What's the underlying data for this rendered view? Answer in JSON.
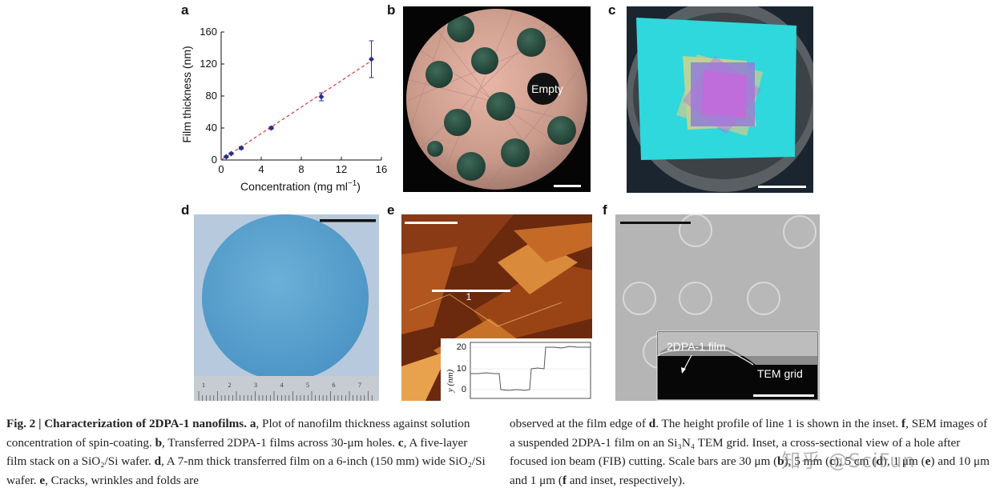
{
  "panels": {
    "a": "a",
    "b": "b",
    "c": "c",
    "d": "d",
    "e": "e",
    "f": "f"
  },
  "chart_data": {
    "type": "scatter",
    "xlabel": "Concentration (mg ml",
    "xlabel_sup": "−1",
    "xlabel_close": ")",
    "ylabel": "Film thickness (nm)",
    "xlim": [
      0,
      16
    ],
    "ylim": [
      0,
      160
    ],
    "xticks": [
      0,
      4,
      8,
      12,
      16
    ],
    "yticks": [
      0,
      40,
      80,
      120,
      160
    ],
    "x": [
      0.5,
      1,
      2,
      5,
      10,
      15
    ],
    "y": [
      4,
      8,
      15,
      40,
      79,
      126
    ],
    "yerr": [
      1,
      1,
      1.5,
      1.5,
      5,
      23
    ],
    "fit": [
      [
        0,
        0
      ],
      [
        15,
        124
      ]
    ],
    "marker_color": "#27318a",
    "fit_color": "#e0353b",
    "grid": false
  },
  "image_b": {
    "label": "Empty"
  },
  "image_e": {
    "line_label": "1",
    "inset": {
      "ylabel": "y (nm)",
      "yticks": [
        "20",
        "10",
        "0"
      ]
    }
  },
  "image_f": {
    "inset_label_film": "2DPA-1 film",
    "inset_label_grid": "TEM grid"
  },
  "ruler_numbers": [
    "1",
    "2",
    "3",
    "4",
    "5",
    "6",
    "7"
  ],
  "caption": {
    "left": [
      {
        "bold": true,
        "text": "Fig. 2 | Characterization of 2DPA-1 nanofilms."
      },
      {
        "bold": true,
        "text": " a"
      },
      {
        "bold": false,
        "text": ", Plot of nanofilm thickness against solution concentration of spin-coating. "
      },
      {
        "bold": true,
        "text": "b"
      },
      {
        "bold": false,
        "text": ", Transferred 2DPA-1 films across 30-μm holes. "
      },
      {
        "bold": true,
        "text": "c"
      },
      {
        "bold": false,
        "text": ", A five-layer film stack on a SiO₂/Si wafer. "
      },
      {
        "bold": true,
        "text": "d"
      },
      {
        "bold": false,
        "text": ", A 7-nm thick transferred film on a 6-inch (150 mm) wide SiO₂/Si wafer. "
      },
      {
        "bold": true,
        "text": "e"
      },
      {
        "bold": false,
        "text": ", Cracks, wrinkles and folds are"
      }
    ],
    "right": [
      {
        "bold": false,
        "text": "observed at the film edge of "
      },
      {
        "bold": true,
        "text": "d"
      },
      {
        "bold": false,
        "text": ". The height profile of line 1 is shown in the inset. "
      },
      {
        "bold": true,
        "text": "f"
      },
      {
        "bold": false,
        "text": ", SEM images of a suspended 2DPA-1 film on an Si₃N₄ TEM grid. Inset, a cross-sectional view of a hole after focused ion beam (FIB) cutting. Scale bars are 30 μm ("
      },
      {
        "bold": true,
        "text": "b"
      },
      {
        "bold": false,
        "text": "), 5 mm ("
      },
      {
        "bold": true,
        "text": "c"
      },
      {
        "bold": false,
        "text": "), 5 cm ("
      },
      {
        "bold": true,
        "text": "d"
      },
      {
        "bold": false,
        "text": "), 1 μm ("
      },
      {
        "bold": true,
        "text": "e"
      },
      {
        "bold": false,
        "text": ") and 10 μm and 1 μm ("
      },
      {
        "bold": true,
        "text": "f"
      },
      {
        "bold": false,
        "text": " and inset, respectively)."
      }
    ]
  },
  "watermark": "知乎 @SciFun"
}
